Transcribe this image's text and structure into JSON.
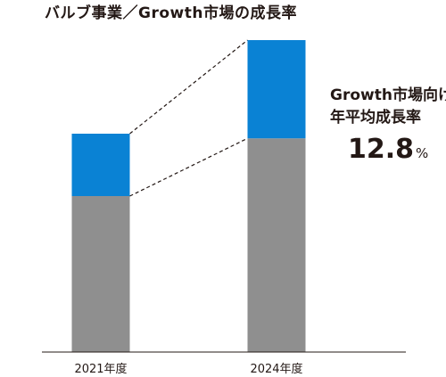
{
  "chart_data": {
    "type": "bar",
    "stacked": true,
    "title": "バルブ事業／Growth市場の成長率",
    "categories": [
      "2021年度",
      "2024年度"
    ],
    "series": [
      {
        "values": [
          100,
          137
        ],
        "color": "#8f8f8f"
      },
      {
        "values": [
          40,
          63
        ],
        "color": "#0a82d4"
      }
    ],
    "ylim": [
      0,
      200
    ],
    "grid": false,
    "connector": "dashed",
    "annotation": {
      "line1": "Growth市場向け",
      "line2": "年平均成長率",
      "value": "12.8",
      "unit": "%"
    }
  }
}
